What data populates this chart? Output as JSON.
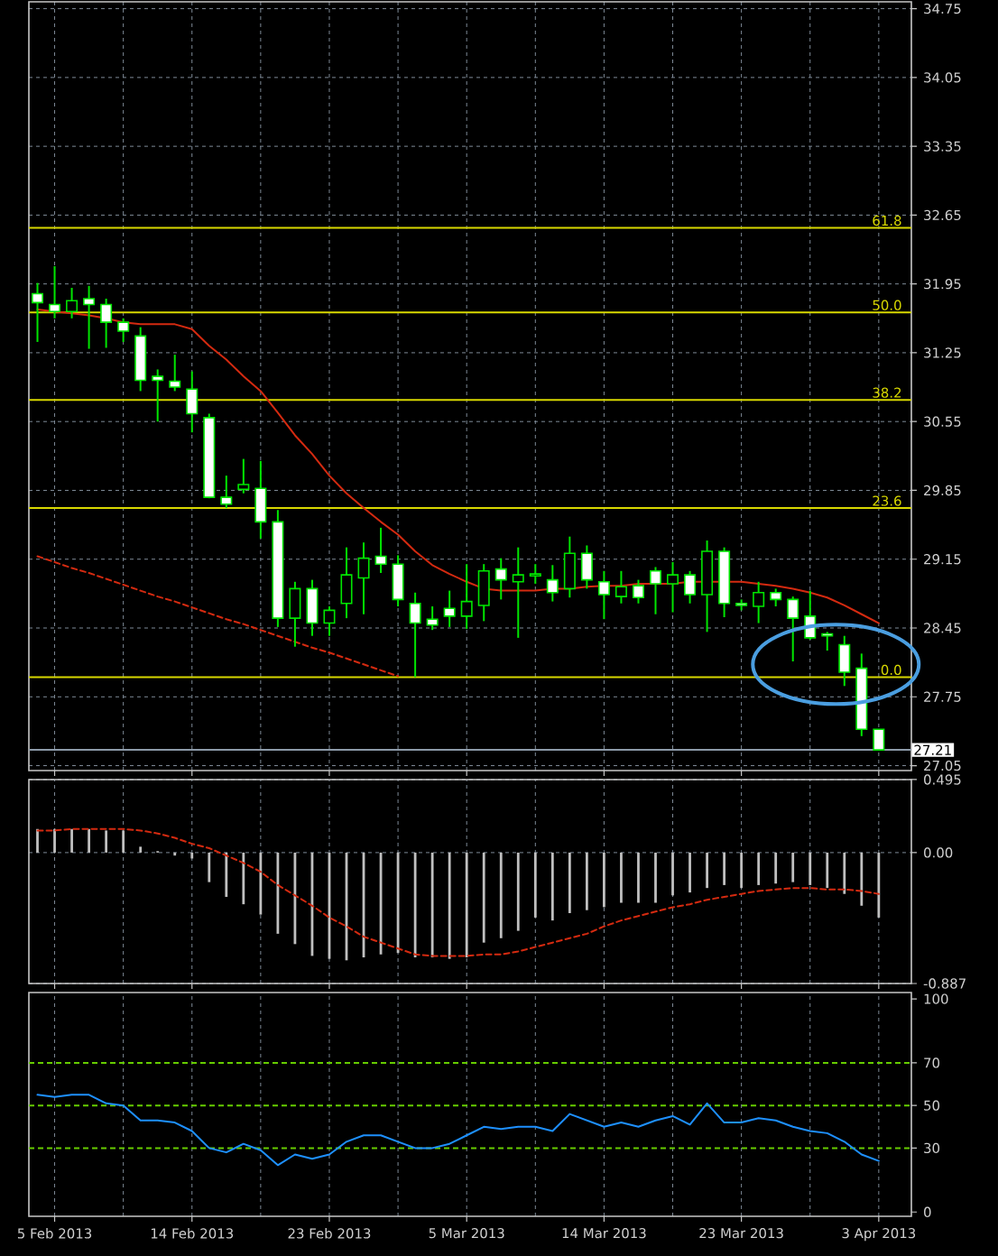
{
  "chart_data": [
    {
      "type": "candlestick",
      "categories": [
        null,
        null,
        null,
        null,
        null,
        null,
        null,
        null,
        null,
        null,
        null,
        null,
        null,
        null,
        null,
        null,
        null,
        null,
        null,
        null,
        null,
        null,
        null,
        null,
        null,
        null,
        null,
        null,
        null,
        null,
        null,
        null,
        null,
        null,
        null,
        null,
        null,
        null,
        null,
        null,
        null,
        null,
        null,
        null,
        null,
        null,
        null,
        null,
        null,
        null
      ],
      "ohlc": [
        [
          31.85,
          31.96,
          31.36,
          31.76
        ],
        [
          31.74,
          32.13,
          31.6,
          31.67
        ],
        [
          31.67,
          31.91,
          31.6,
          31.78
        ],
        [
          31.8,
          31.93,
          31.29,
          31.74
        ],
        [
          31.74,
          31.8,
          31.3,
          31.56
        ],
        [
          31.56,
          31.6,
          31.36,
          31.47
        ],
        [
          31.42,
          31.51,
          30.86,
          30.97
        ],
        [
          31.01,
          31.08,
          30.55,
          30.97
        ],
        [
          30.96,
          31.23,
          30.86,
          30.9
        ],
        [
          30.88,
          31.06,
          30.44,
          30.63
        ],
        [
          30.59,
          30.63,
          29.77,
          29.78
        ],
        [
          29.78,
          30.0,
          29.67,
          29.71
        ],
        [
          29.86,
          30.17,
          29.82,
          29.91
        ],
        [
          29.87,
          30.15,
          29.36,
          29.53
        ],
        [
          29.53,
          29.65,
          28.46,
          28.55
        ],
        [
          28.55,
          28.92,
          28.26,
          28.85
        ],
        [
          28.85,
          28.94,
          28.37,
          28.5
        ],
        [
          28.5,
          28.67,
          28.37,
          28.63
        ],
        [
          28.7,
          29.27,
          28.55,
          28.99
        ],
        [
          28.96,
          29.32,
          28.59,
          29.16
        ],
        [
          29.18,
          29.47,
          29.01,
          29.1
        ],
        [
          29.1,
          29.19,
          28.67,
          28.74
        ],
        [
          28.7,
          28.81,
          27.95,
          28.5
        ],
        [
          28.54,
          28.67,
          28.43,
          28.48
        ],
        [
          28.65,
          28.83,
          28.46,
          28.57
        ],
        [
          28.57,
          29.1,
          28.44,
          28.72
        ],
        [
          28.68,
          29.1,
          28.52,
          29.03
        ],
        [
          29.05,
          29.16,
          28.74,
          28.94
        ],
        [
          28.92,
          29.27,
          28.35,
          28.99
        ],
        [
          28.98,
          29.1,
          28.9,
          29.0
        ],
        [
          28.94,
          29.09,
          28.72,
          28.81
        ],
        [
          28.85,
          29.38,
          28.76,
          29.21
        ],
        [
          29.21,
          29.29,
          28.85,
          28.94
        ],
        [
          28.92,
          29.03,
          28.54,
          28.79
        ],
        [
          28.77,
          29.03,
          28.7,
          28.87
        ],
        [
          28.88,
          28.94,
          28.7,
          28.76
        ],
        [
          29.03,
          29.07,
          28.59,
          28.9
        ],
        [
          28.9,
          29.12,
          28.61,
          28.99
        ],
        [
          28.99,
          29.03,
          28.7,
          28.79
        ],
        [
          28.79,
          29.34,
          28.41,
          29.23
        ],
        [
          29.23,
          29.27,
          28.56,
          28.7
        ],
        [
          28.7,
          28.74,
          28.63,
          28.68
        ],
        [
          28.67,
          28.92,
          28.5,
          28.81
        ],
        [
          28.81,
          28.85,
          28.67,
          28.74
        ],
        [
          28.74,
          28.77,
          28.11,
          28.55
        ],
        [
          28.57,
          28.83,
          28.33,
          28.35
        ],
        [
          28.39,
          28.41,
          28.22,
          28.37
        ],
        [
          28.28,
          28.37,
          27.86,
          28.0
        ],
        [
          28.04,
          28.19,
          27.35,
          27.42
        ],
        [
          27.42,
          27.42,
          27.21,
          27.21
        ]
      ],
      "color": "#00e600",
      "series": [
        {
          "type": "line",
          "color": "#d42a10",
          "values": [
            31.69,
            31.67,
            31.65,
            31.63,
            31.6,
            31.56,
            31.54,
            31.54,
            31.54,
            31.49,
            31.32,
            31.18,
            31.01,
            30.86,
            30.64,
            30.41,
            30.22,
            30.0,
            29.82,
            29.67,
            29.53,
            29.4,
            29.23,
            29.09,
            29.0,
            28.92,
            28.85,
            28.83,
            28.83,
            28.83,
            28.85,
            28.85,
            28.87,
            28.88,
            28.88,
            28.9,
            28.9,
            28.9,
            28.92,
            28.92,
            28.92,
            28.92,
            28.9,
            28.88,
            28.85,
            28.81,
            28.76,
            28.68,
            28.59,
            28.5
          ]
        },
        {
          "type": "line",
          "color": "#d42a10",
          "line_style": "dashed",
          "values": [
            29.18,
            29.12,
            29.06,
            29.01,
            28.95,
            28.89,
            28.83,
            28.77,
            28.72,
            28.66,
            28.6,
            28.54,
            28.49,
            28.43,
            28.37,
            28.31,
            28.25,
            28.2,
            28.14,
            28.08,
            28.02,
            27.96,
            null,
            null,
            null,
            null,
            null,
            null,
            null,
            null,
            null,
            null,
            null,
            null,
            null,
            null,
            null,
            null,
            null,
            null,
            null,
            null,
            null,
            null,
            null,
            null,
            null,
            null,
            null,
            null
          ]
        }
      ],
      "ref_lines": [
        {
          "axis": "y",
          "value": 32.52,
          "color": "#d8d800"
        },
        {
          "axis": "y",
          "value": 31.66,
          "color": "#d8d800"
        },
        {
          "axis": "y",
          "value": 30.77,
          "color": "#d8d800"
        },
        {
          "axis": "y",
          "value": 29.67,
          "color": "#d8d800"
        },
        {
          "axis": "y",
          "value": 27.95,
          "color": "#d8d800"
        },
        {
          "axis": "y",
          "value": 27.21,
          "label": "27.21",
          "color": "#8c9aa8"
        }
      ],
      "annotations": [
        {
          "text": "61.8",
          "y": 32.52
        },
        {
          "text": "50.0",
          "y": 31.66
        },
        {
          "text": "38.2",
          "y": 30.77
        },
        {
          "text": "23.6",
          "y": 29.67
        },
        {
          "text": "0.0",
          "y": 27.95
        }
      ],
      "ylim": [
        27.0,
        34.82
      ],
      "yticks": [
        34.75,
        34.05,
        33.35,
        32.65,
        31.95,
        31.25,
        30.55,
        29.85,
        29.15,
        28.45,
        27.75,
        27.05
      ],
      "grid": true
    },
    {
      "type": "bar",
      "categories": [
        null,
        null,
        null,
        null,
        null,
        null,
        null,
        null,
        null,
        null,
        null,
        null,
        null,
        null,
        null,
        null,
        null,
        null,
        null,
        null,
        null,
        null,
        null,
        null,
        null,
        null,
        null,
        null,
        null,
        null,
        null,
        null,
        null,
        null,
        null,
        null,
        null,
        null,
        null,
        null,
        null,
        null,
        null,
        null,
        null,
        null,
        null,
        null,
        null,
        null
      ],
      "series": [
        {
          "color": "#c0c0c0",
          "values": [
            0.16,
            0.16,
            0.16,
            0.16,
            0.15,
            0.15,
            0.04,
            0.01,
            -0.02,
            -0.04,
            -0.2,
            -0.3,
            -0.35,
            -0.42,
            -0.55,
            -0.62,
            -0.7,
            -0.72,
            -0.73,
            -0.71,
            -0.69,
            -0.68,
            -0.71,
            -0.71,
            -0.72,
            -0.71,
            -0.61,
            -0.58,
            -0.53,
            -0.44,
            -0.46,
            -0.41,
            -0.39,
            -0.37,
            -0.34,
            -0.34,
            -0.34,
            -0.29,
            -0.27,
            -0.24,
            -0.22,
            -0.24,
            -0.22,
            -0.21,
            -0.2,
            -0.22,
            -0.24,
            -0.28,
            -0.36,
            -0.44
          ]
        },
        {
          "type": "line",
          "color": "#d42a10",
          "line_style": "dashed",
          "values": [
            0.15,
            0.15,
            0.16,
            0.16,
            0.16,
            0.16,
            0.15,
            0.13,
            0.1,
            0.06,
            0.03,
            -0.02,
            -0.07,
            -0.13,
            -0.22,
            -0.29,
            -0.36,
            -0.44,
            -0.5,
            -0.57,
            -0.61,
            -0.65,
            -0.69,
            -0.7,
            -0.7,
            -0.7,
            -0.69,
            -0.69,
            -0.67,
            -0.64,
            -0.61,
            -0.58,
            -0.55,
            -0.5,
            -0.46,
            -0.43,
            -0.4,
            -0.37,
            -0.35,
            -0.32,
            -0.3,
            -0.28,
            -0.26,
            -0.25,
            -0.24,
            -0.24,
            -0.25,
            -0.25,
            -0.26,
            -0.28
          ]
        }
      ],
      "ylim": [
        -0.887,
        0.495
      ],
      "yticks": [
        0.495,
        {
          "value": 0,
          "label": "0.00"
        },
        -0.887
      ],
      "grid": true
    },
    {
      "type": "line",
      "categories": [
        null,
        "5 Feb 2013",
        null,
        null,
        null,
        null,
        null,
        null,
        null,
        "14 Feb 2013",
        null,
        null,
        null,
        null,
        null,
        null,
        null,
        "23 Feb 2013",
        null,
        null,
        null,
        null,
        null,
        null,
        null,
        "5 Mar 2013",
        null,
        null,
        null,
        null,
        null,
        null,
        null,
        "14 Mar 2013",
        null,
        null,
        null,
        null,
        null,
        null,
        null,
        "23 Mar 2013",
        null,
        null,
        null,
        null,
        null,
        null,
        null,
        "3 Apr 2013"
      ],
      "values": [
        55,
        54,
        55,
        55,
        51,
        50,
        43,
        43,
        42,
        38,
        30,
        28,
        32,
        29,
        22,
        27,
        25,
        27,
        33,
        36,
        36,
        33,
        30,
        30,
        32,
        36,
        40,
        39,
        40,
        40,
        38,
        46,
        43,
        40,
        42,
        40,
        43,
        45,
        41,
        51,
        42,
        42,
        44,
        43,
        40,
        38,
        37,
        33,
        27,
        24
      ],
      "color": "#1e90ff",
      "ref_lines": [
        {
          "axis": "y",
          "value": 70,
          "color": "#66cc00",
          "line_style": "dashed"
        },
        {
          "axis": "y",
          "value": 50,
          "color": "#66cc00",
          "line_style": "dashed"
        },
        {
          "axis": "y",
          "value": 30,
          "color": "#66cc00",
          "line_style": "dashed"
        }
      ],
      "ylim": [
        -2,
        103
      ],
      "yticks": [
        100,
        70,
        50,
        30,
        0
      ],
      "grid": "x"
    }
  ]
}
